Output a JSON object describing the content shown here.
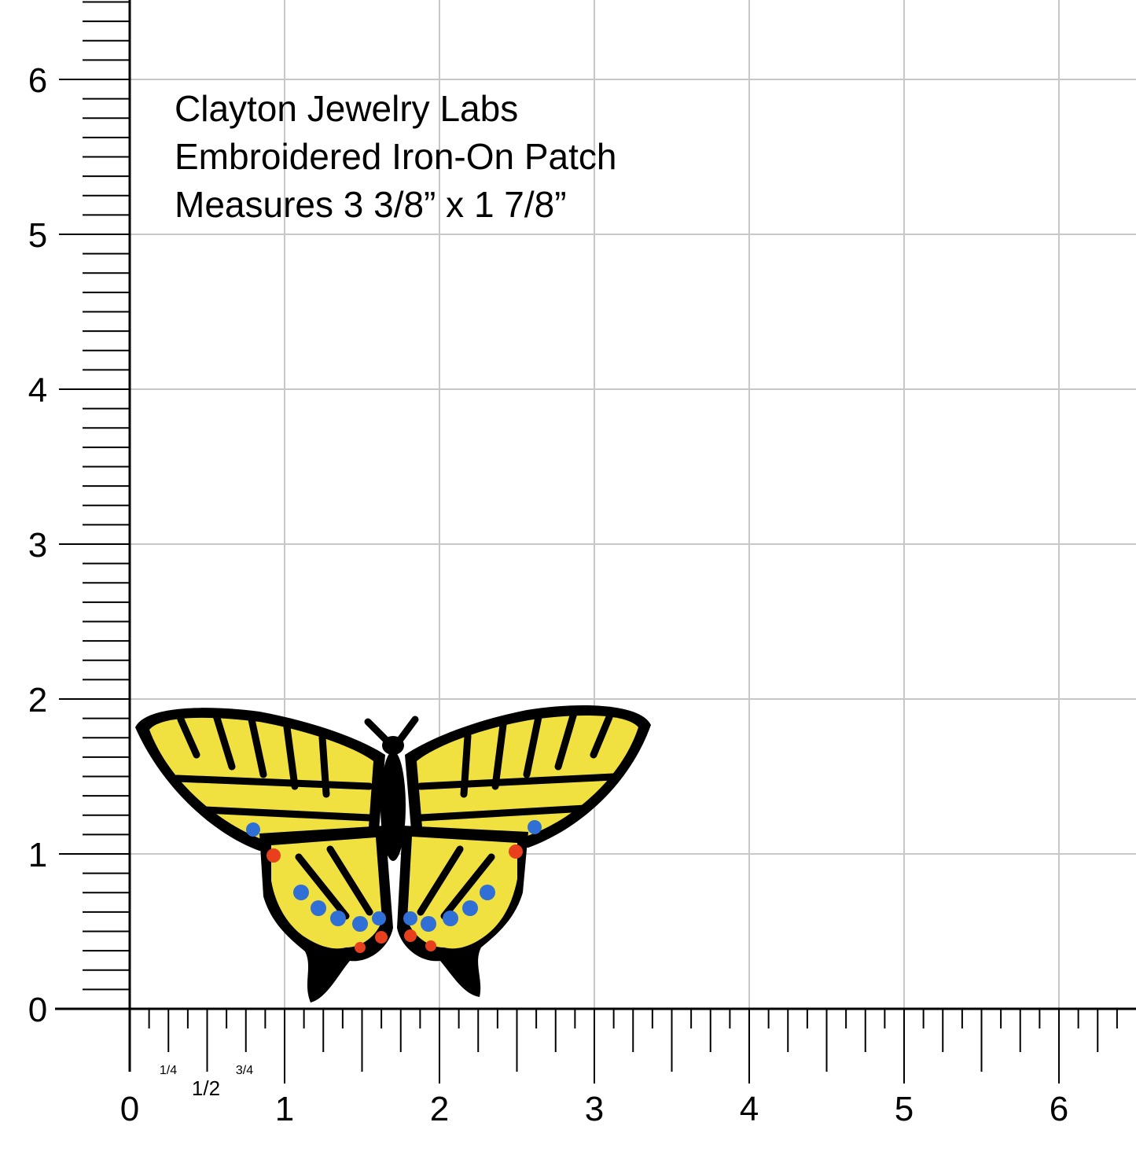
{
  "caption": {
    "lines": [
      "Clayton Jewelry Labs",
      "Embroidered Iron-On Patch",
      "Measures 3 3/8” x 1 7/8”"
    ]
  },
  "ruler": {
    "unit": "inch",
    "vertical_labels": [
      "0",
      "1",
      "2",
      "3",
      "4",
      "5",
      "6"
    ],
    "horizontal_labels": [
      "0",
      "1",
      "2",
      "3",
      "4",
      "5",
      "6"
    ],
    "fraction_labels": [
      "1/4",
      "1/2",
      "3/4"
    ],
    "grid_color": "#c8c8c8",
    "tick_color": "#000000"
  },
  "patch": {
    "subject": "swallowtail butterfly",
    "width_in": 3.375,
    "height_in": 1.875,
    "colors": {
      "outline": "#000000",
      "wing": "#f0e040",
      "blue_spots": "#2f6fd6",
      "red_spots": "#e8401c"
    }
  }
}
